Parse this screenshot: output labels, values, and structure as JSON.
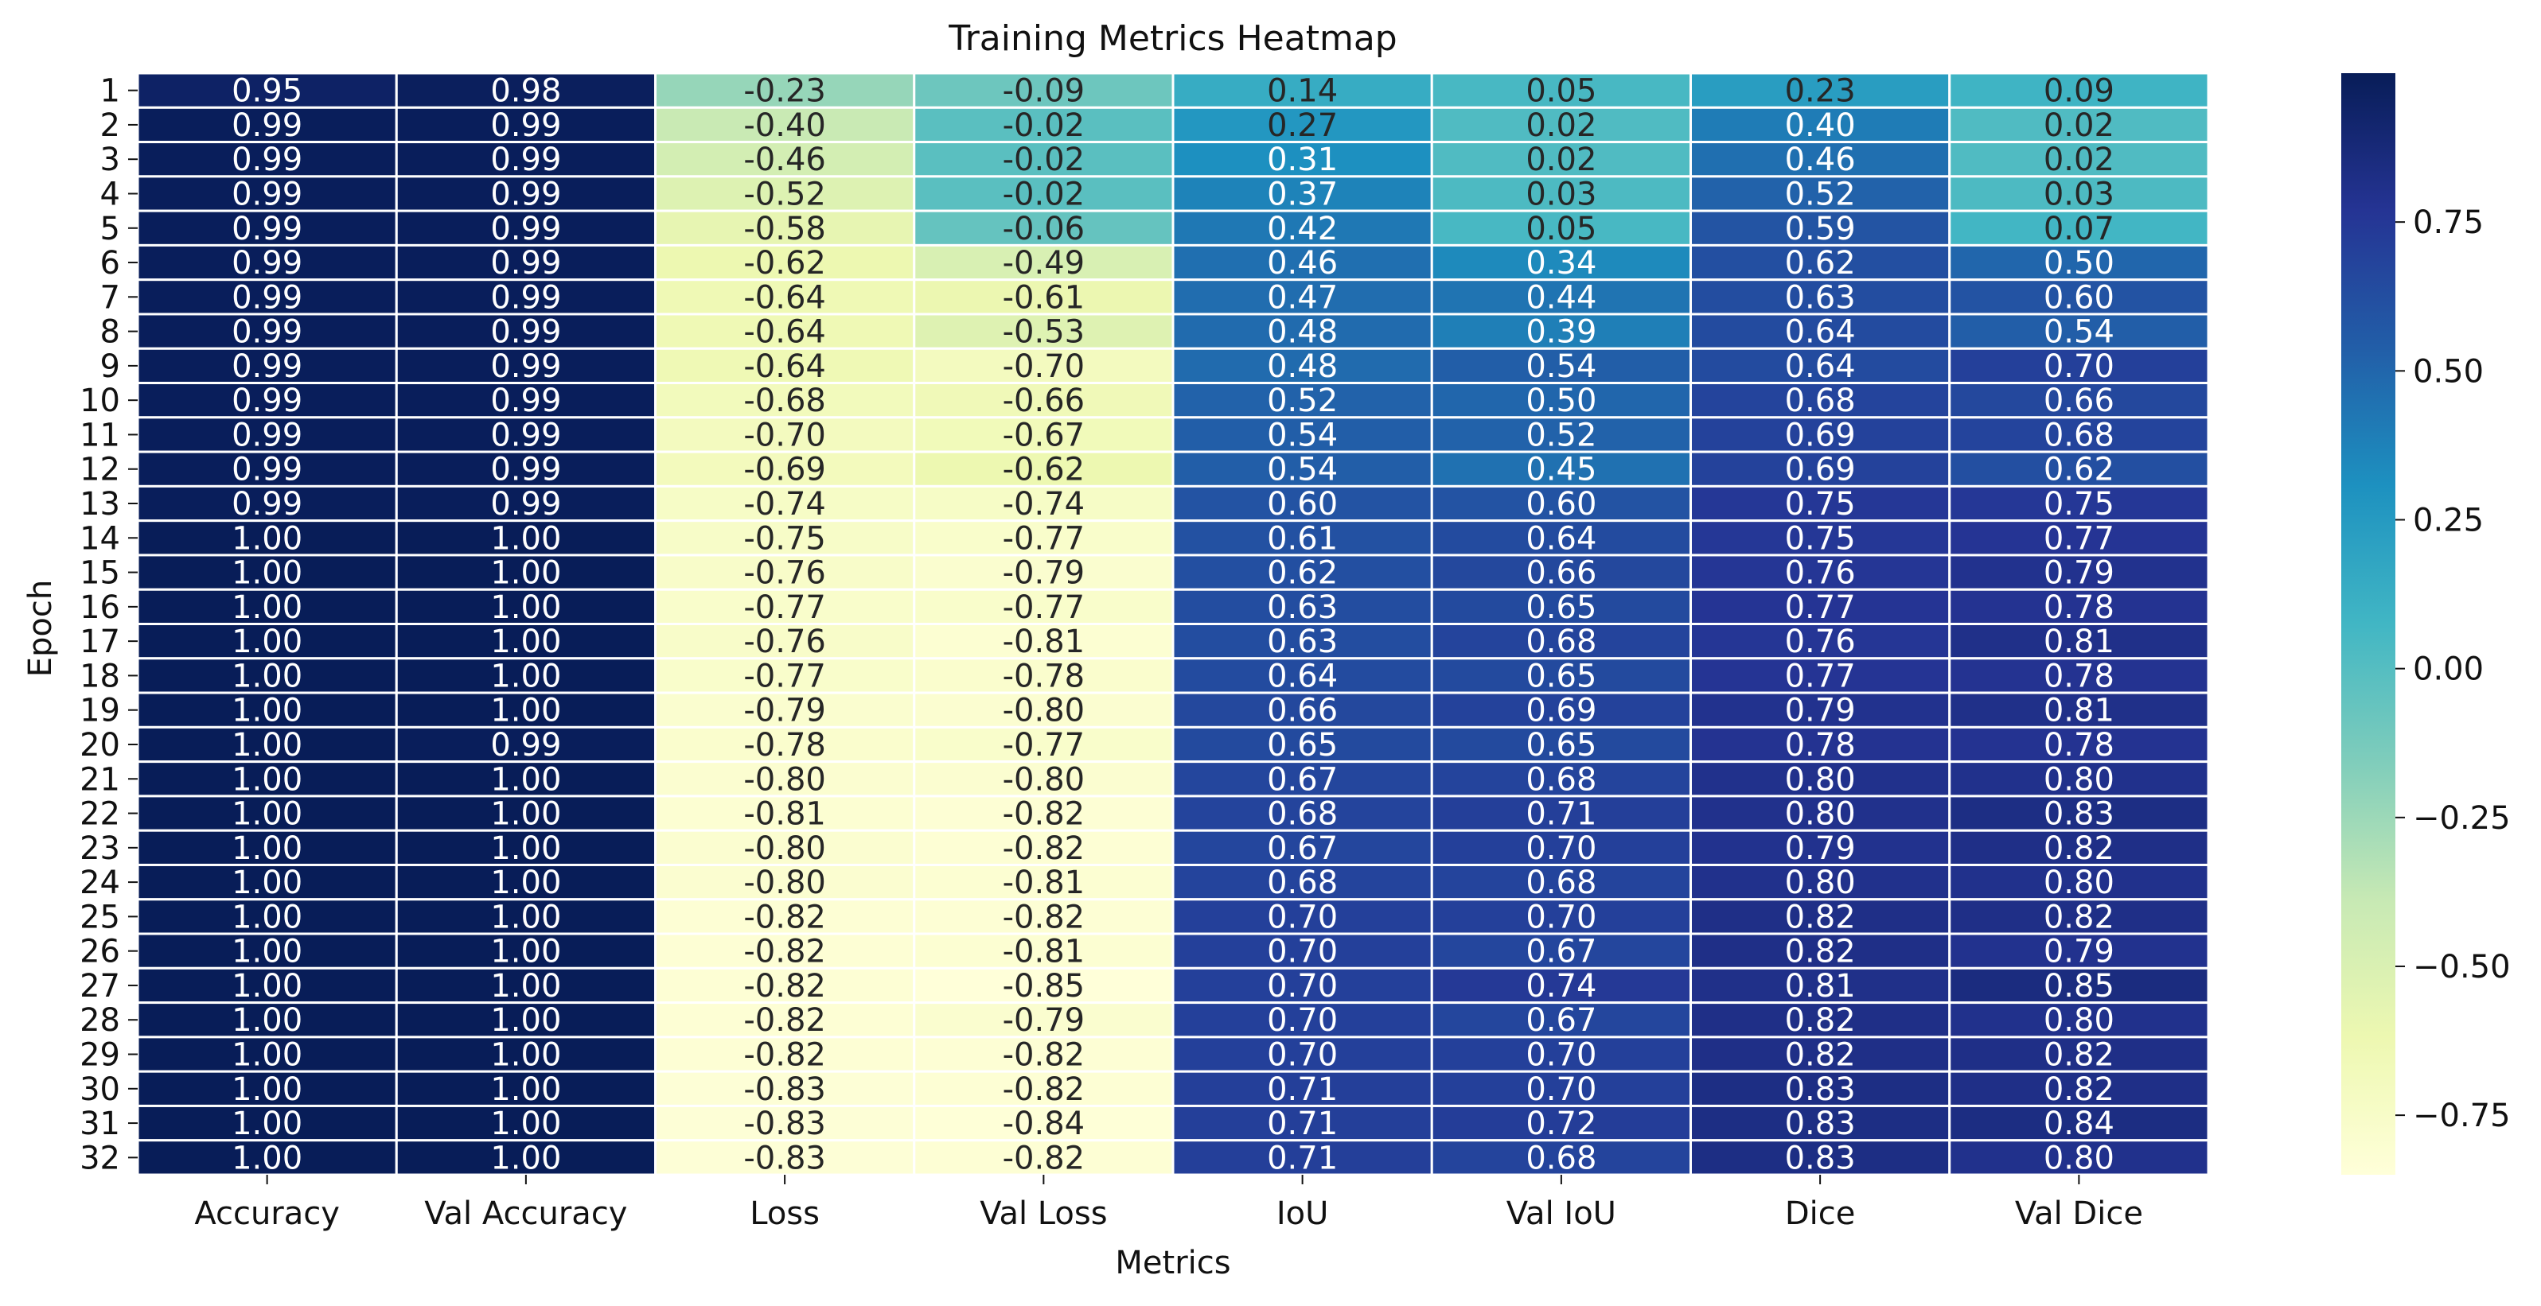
{
  "chart_data": {
    "type": "heatmap",
    "title": "Training Metrics Heatmap",
    "xlabel": "Metrics",
    "ylabel": "Epoch",
    "columns": [
      "Accuracy",
      "Val Accuracy",
      "Loss",
      "Val Loss",
      "IoU",
      "Val IoU",
      "Dice",
      "Val Dice"
    ],
    "rows": [
      "1",
      "2",
      "3",
      "4",
      "5",
      "6",
      "7",
      "8",
      "9",
      "10",
      "11",
      "12",
      "13",
      "14",
      "15",
      "16",
      "17",
      "18",
      "19",
      "20",
      "21",
      "22",
      "23",
      "24",
      "25",
      "26",
      "27",
      "28",
      "29",
      "30",
      "31",
      "32"
    ],
    "values": [
      [
        "0.95",
        "0.98",
        "-0.23",
        "-0.09",
        "0.14",
        "0.05",
        "0.23",
        "0.09"
      ],
      [
        "0.99",
        "0.99",
        "-0.40",
        "-0.02",
        "0.27",
        "0.02",
        "0.40",
        "0.02"
      ],
      [
        "0.99",
        "0.99",
        "-0.46",
        "-0.02",
        "0.31",
        "0.02",
        "0.46",
        "0.02"
      ],
      [
        "0.99",
        "0.99",
        "-0.52",
        "-0.02",
        "0.37",
        "0.03",
        "0.52",
        "0.03"
      ],
      [
        "0.99",
        "0.99",
        "-0.58",
        "-0.06",
        "0.42",
        "0.05",
        "0.59",
        "0.07"
      ],
      [
        "0.99",
        "0.99",
        "-0.62",
        "-0.49",
        "0.46",
        "0.34",
        "0.62",
        "0.50"
      ],
      [
        "0.99",
        "0.99",
        "-0.64",
        "-0.61",
        "0.47",
        "0.44",
        "0.63",
        "0.60"
      ],
      [
        "0.99",
        "0.99",
        "-0.64",
        "-0.53",
        "0.48",
        "0.39",
        "0.64",
        "0.54"
      ],
      [
        "0.99",
        "0.99",
        "-0.64",
        "-0.70",
        "0.48",
        "0.54",
        "0.64",
        "0.70"
      ],
      [
        "0.99",
        "0.99",
        "-0.68",
        "-0.66",
        "0.52",
        "0.50",
        "0.68",
        "0.66"
      ],
      [
        "0.99",
        "0.99",
        "-0.70",
        "-0.67",
        "0.54",
        "0.52",
        "0.69",
        "0.68"
      ],
      [
        "0.99",
        "0.99",
        "-0.69",
        "-0.62",
        "0.54",
        "0.45",
        "0.69",
        "0.62"
      ],
      [
        "0.99",
        "0.99",
        "-0.74",
        "-0.74",
        "0.60",
        "0.60",
        "0.75",
        "0.75"
      ],
      [
        "1.00",
        "1.00",
        "-0.75",
        "-0.77",
        "0.61",
        "0.64",
        "0.75",
        "0.77"
      ],
      [
        "1.00",
        "1.00",
        "-0.76",
        "-0.79",
        "0.62",
        "0.66",
        "0.76",
        "0.79"
      ],
      [
        "1.00",
        "1.00",
        "-0.77",
        "-0.77",
        "0.63",
        "0.65",
        "0.77",
        "0.78"
      ],
      [
        "1.00",
        "1.00",
        "-0.76",
        "-0.81",
        "0.63",
        "0.68",
        "0.76",
        "0.81"
      ],
      [
        "1.00",
        "1.00",
        "-0.77",
        "-0.78",
        "0.64",
        "0.65",
        "0.77",
        "0.78"
      ],
      [
        "1.00",
        "1.00",
        "-0.79",
        "-0.80",
        "0.66",
        "0.69",
        "0.79",
        "0.81"
      ],
      [
        "1.00",
        "0.99",
        "-0.78",
        "-0.77",
        "0.65",
        "0.65",
        "0.78",
        "0.78"
      ],
      [
        "1.00",
        "1.00",
        "-0.80",
        "-0.80",
        "0.67",
        "0.68",
        "0.80",
        "0.80"
      ],
      [
        "1.00",
        "1.00",
        "-0.81",
        "-0.82",
        "0.68",
        "0.71",
        "0.80",
        "0.83"
      ],
      [
        "1.00",
        "1.00",
        "-0.80",
        "-0.82",
        "0.67",
        "0.70",
        "0.79",
        "0.82"
      ],
      [
        "1.00",
        "1.00",
        "-0.80",
        "-0.81",
        "0.68",
        "0.68",
        "0.80",
        "0.80"
      ],
      [
        "1.00",
        "1.00",
        "-0.82",
        "-0.82",
        "0.70",
        "0.70",
        "0.82",
        "0.82"
      ],
      [
        "1.00",
        "1.00",
        "-0.82",
        "-0.81",
        "0.70",
        "0.67",
        "0.82",
        "0.79"
      ],
      [
        "1.00",
        "1.00",
        "-0.82",
        "-0.85",
        "0.70",
        "0.74",
        "0.81",
        "0.85"
      ],
      [
        "1.00",
        "1.00",
        "-0.82",
        "-0.79",
        "0.70",
        "0.67",
        "0.82",
        "0.80"
      ],
      [
        "1.00",
        "1.00",
        "-0.82",
        "-0.82",
        "0.70",
        "0.70",
        "0.82",
        "0.82"
      ],
      [
        "1.00",
        "1.00",
        "-0.83",
        "-0.82",
        "0.71",
        "0.70",
        "0.83",
        "0.82"
      ],
      [
        "1.00",
        "1.00",
        "-0.83",
        "-0.84",
        "0.71",
        "0.72",
        "0.83",
        "0.84"
      ],
      [
        "1.00",
        "1.00",
        "-0.83",
        "-0.82",
        "0.71",
        "0.68",
        "0.83",
        "0.80"
      ]
    ],
    "colorbar": {
      "colormap": "YlGnBu",
      "ticks": [
        "0.75",
        "0.50",
        "0.25",
        "0.00",
        "−0.25",
        "−0.50",
        "−0.75"
      ],
      "tick_values": [
        0.75,
        0.5,
        0.25,
        0.0,
        -0.25,
        -0.5,
        -0.75
      ],
      "range": [
        -0.85,
        1.0
      ]
    },
    "grid": true,
    "legend": "none"
  }
}
